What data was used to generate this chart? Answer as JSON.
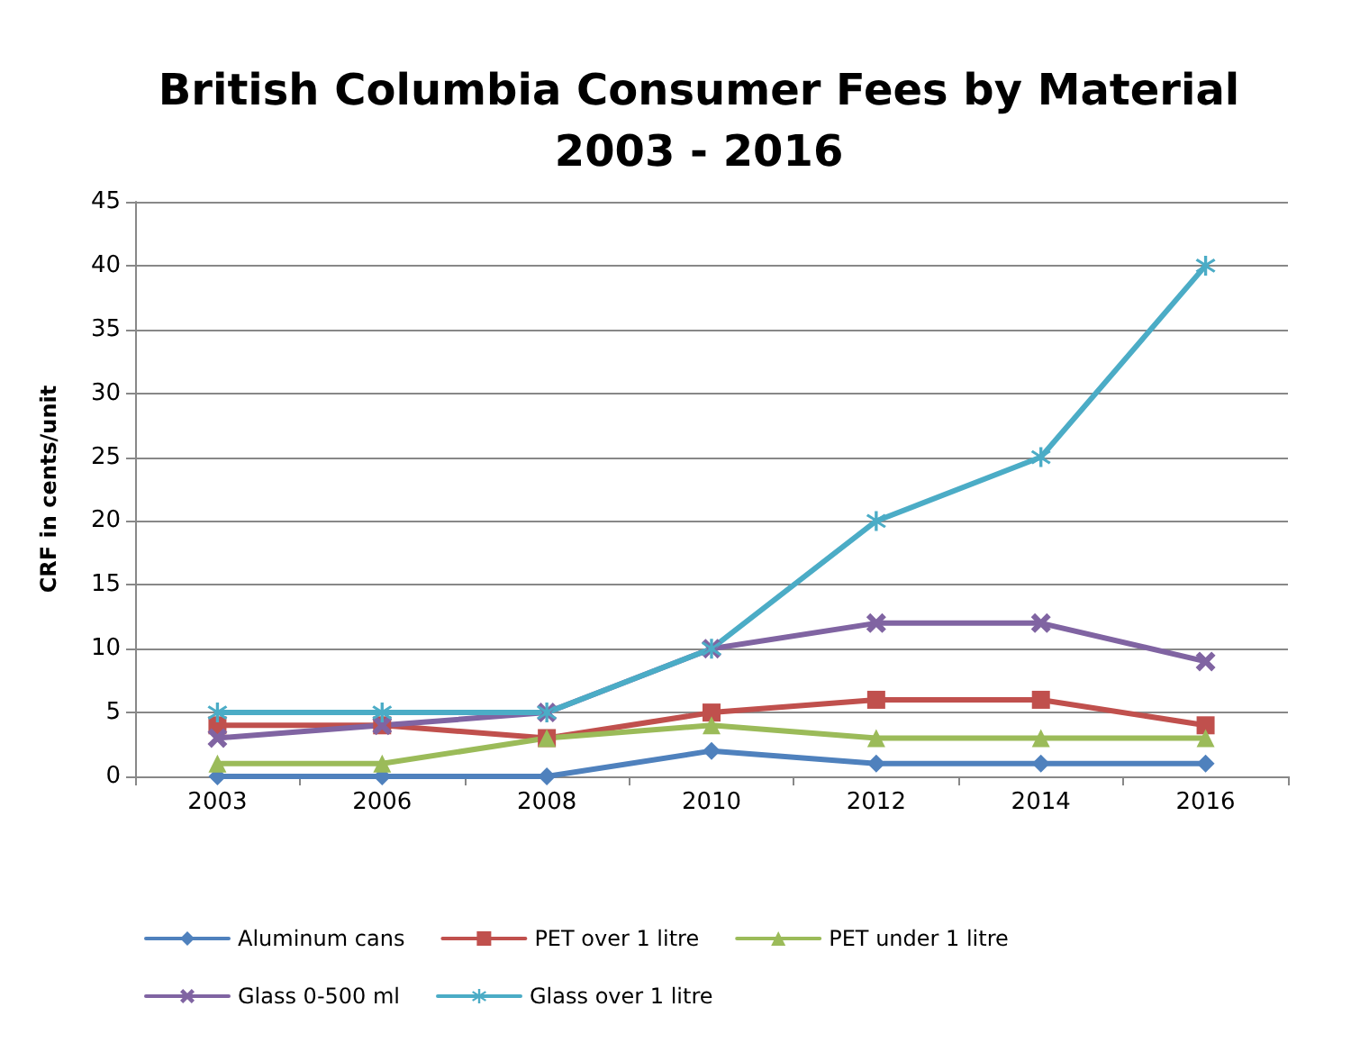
{
  "chart_data": {
    "type": "line",
    "title": "British Columbia Consumer Fees by Material\n2003 - 2016",
    "ylabel": "CRF in cents/unit",
    "categories": [
      "2003",
      "2006",
      "2008",
      "2010",
      "2012",
      "2014",
      "2016"
    ],
    "ylim": [
      0,
      45
    ],
    "yticks": [
      0,
      5,
      10,
      15,
      20,
      25,
      30,
      35,
      40,
      45
    ],
    "grid": "y",
    "legend": "bottom",
    "series": [
      {
        "name": "Aluminum cans",
        "color": "#4f81bd",
        "marker": "diamond",
        "values": [
          0,
          0,
          0,
          2,
          1,
          1,
          1
        ]
      },
      {
        "name": "PET over 1 litre",
        "color": "#c0504d",
        "marker": "square",
        "values": [
          4,
          4,
          3,
          5,
          6,
          6,
          4
        ]
      },
      {
        "name": "PET under 1 litre",
        "color": "#9bbb59",
        "marker": "triangle",
        "values": [
          1,
          1,
          3,
          4,
          3,
          3,
          3
        ]
      },
      {
        "name": "Glass 0-500 ml",
        "color": "#8064a2",
        "marker": "cross",
        "values": [
          3,
          4,
          5,
          10,
          12,
          12,
          9
        ]
      },
      {
        "name": "Glass over 1 litre",
        "color": "#4bacc6",
        "marker": "star",
        "values": [
          5,
          5,
          5,
          10,
          20,
          25,
          40
        ]
      }
    ]
  }
}
